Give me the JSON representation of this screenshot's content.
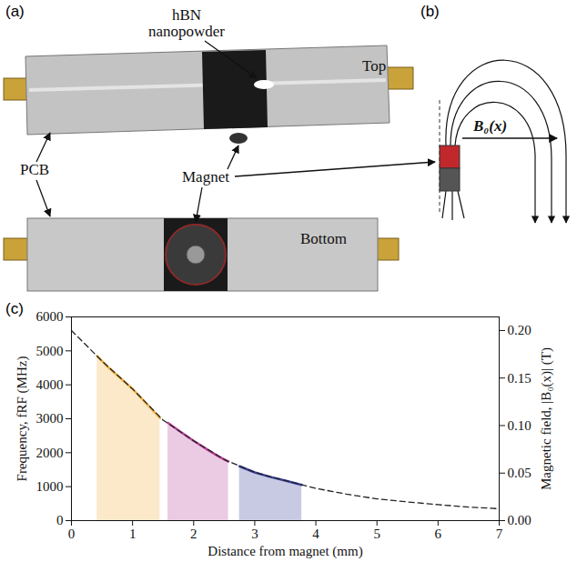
{
  "panels": {
    "a": {
      "letter": "(a)",
      "labels": {
        "hbn": "hBN nanopowder",
        "top": "Top",
        "pcb": "PCB",
        "magnet": "Magnet",
        "bottom": "Bottom"
      }
    },
    "b": {
      "letter": "(b)",
      "field": "B₀(x)"
    }
  },
  "chart_data": {
    "letter": "(c)",
    "type": "line",
    "x_label": "Distance from magnet (mm)",
    "y_label": "Frequency, fRF (MHz)",
    "y2_label": "Magnetic field, |B₀(x)| (T)",
    "xlim": [
      0,
      7
    ],
    "xticks": [
      0,
      1,
      2,
      3,
      4,
      5,
      6,
      7
    ],
    "ylim": [
      0,
      6000
    ],
    "yticks": [
      0,
      1000,
      2000,
      3000,
      4000,
      5000,
      6000
    ],
    "y2lim": [
      0,
      0.2143
    ],
    "y2ticks": [
      {
        "value": 0,
        "label": "0.00"
      },
      {
        "value": 0.05,
        "label": "0.05"
      },
      {
        "value": 0.1,
        "label": "0.10"
      },
      {
        "value": 0.15,
        "label": "0.15"
      },
      {
        "value": 0.2,
        "label": "0.20"
      }
    ],
    "grid": false,
    "series": [
      {
        "type": "area",
        "color": "#f0b040",
        "x": [
          0.42,
          0.6,
          0.8,
          1.0,
          1.2,
          1.45
        ],
        "values": [
          4850,
          4520,
          4200,
          3880,
          3500,
          3020
        ]
      },
      {
        "type": "area",
        "color": "#b8409a",
        "x": [
          1.58,
          1.8,
          2.0,
          2.2,
          2.4,
          2.57
        ],
        "values": [
          2880,
          2600,
          2350,
          2120,
          1900,
          1740
        ]
      },
      {
        "type": "area",
        "color": "#3a3f9a",
        "x": [
          2.75,
          3.0,
          3.25,
          3.5,
          3.77
        ],
        "values": [
          1600,
          1420,
          1290,
          1180,
          1050
        ]
      },
      {
        "type": "line",
        "color": "#222222",
        "line_style": "dashed",
        "x": [
          0,
          0.5,
          1,
          1.5,
          2,
          2.5,
          3,
          3.5,
          4,
          4.5,
          5,
          5.5,
          6,
          6.5,
          7
        ],
        "values": [
          5600,
          4700,
          3880,
          2960,
          2350,
          1800,
          1420,
          1180,
          950,
          780,
          640,
          550,
          470,
          400,
          350
        ]
      }
    ]
  }
}
